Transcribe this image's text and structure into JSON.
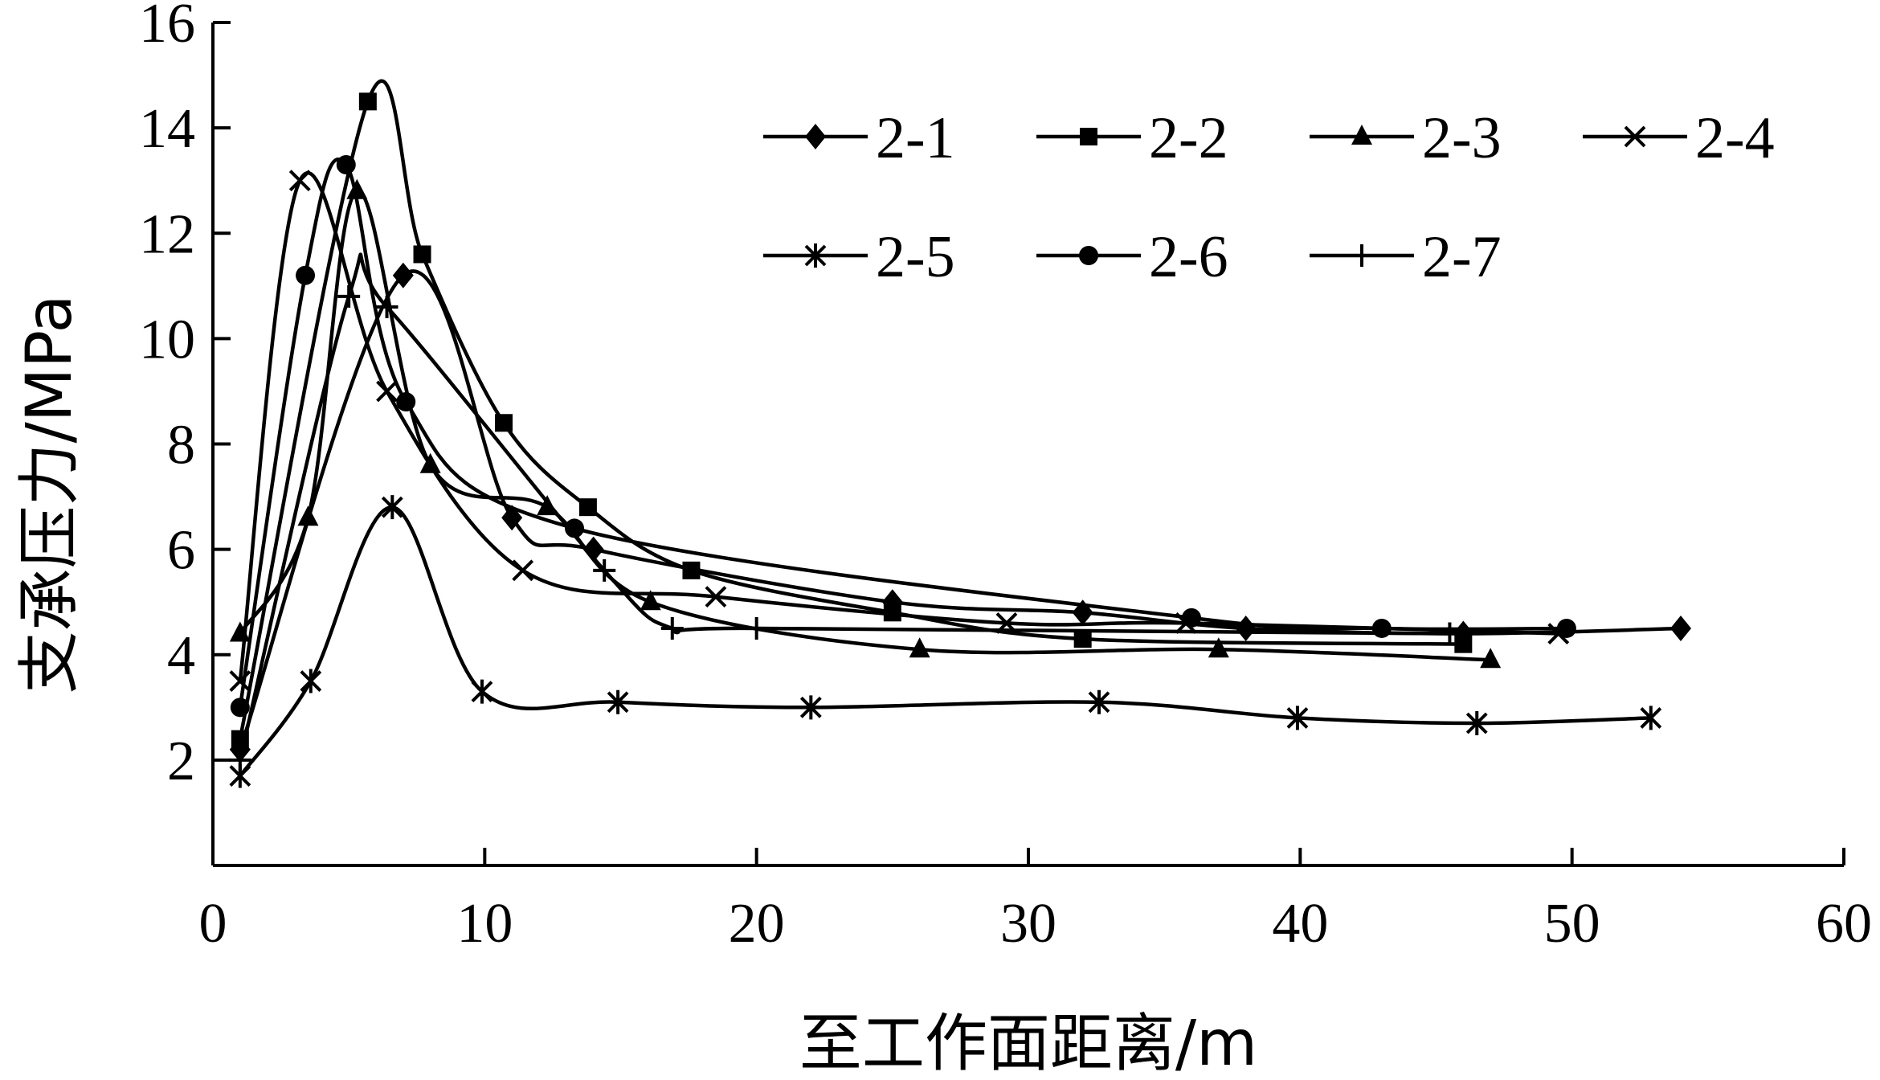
{
  "chart_data": {
    "type": "line",
    "title": "",
    "xlabel": "至工作面距离/m",
    "ylabel": "支承压力/MPa",
    "xlim": [
      0,
      60
    ],
    "ylim": [
      0,
      16
    ],
    "xticks": [
      "0",
      "10",
      "20",
      "30",
      "40",
      "50",
      "60"
    ],
    "yticks": [
      "2",
      "4",
      "6",
      "8",
      "10",
      "12",
      "14",
      "16"
    ],
    "grid": false,
    "legend_position": "top-right",
    "series": [
      {
        "name": "2-1",
        "marker": "diamond",
        "x": [
          1,
          7,
          11,
          14,
          25,
          32,
          38,
          46,
          54
        ],
        "y": [
          2.2,
          11.2,
          6.6,
          6.0,
          5.0,
          4.8,
          4.5,
          4.4,
          4.5
        ]
      },
      {
        "name": "2-2",
        "marker": "square",
        "x": [
          1,
          5.7,
          7.7,
          10.7,
          13.8,
          17.6,
          25,
          32,
          46
        ],
        "y": [
          2.4,
          14.5,
          11.6,
          8.4,
          6.8,
          5.6,
          4.8,
          4.3,
          4.2
        ]
      },
      {
        "name": "2-3",
        "marker": "triangle",
        "x": [
          1,
          3.5,
          5.3,
          8.0,
          12.3,
          16.1,
          26,
          37,
          47
        ],
        "y": [
          4.4,
          6.6,
          12.8,
          7.6,
          6.8,
          5.0,
          4.1,
          4.1,
          3.9
        ]
      },
      {
        "name": "2-4",
        "marker": "x",
        "x": [
          1,
          3.2,
          6.4,
          11.4,
          18.5,
          29.2,
          35.8,
          49.5
        ],
        "y": [
          3.5,
          13.0,
          9.0,
          5.6,
          5.1,
          4.6,
          4.6,
          4.4
        ]
      },
      {
        "name": "2-5",
        "marker": "star",
        "x": [
          1,
          3.6,
          6.6,
          9.9,
          14.9,
          22.0,
          32.6,
          39.9,
          46.5,
          52.9
        ],
        "y": [
          1.7,
          3.5,
          6.8,
          3.3,
          3.1,
          3.0,
          3.1,
          2.8,
          2.7,
          2.8
        ]
      },
      {
        "name": "2-6",
        "marker": "circle",
        "x": [
          1,
          3.4,
          4.9,
          7.1,
          13.3,
          36,
          43,
          49.8
        ],
        "y": [
          3.0,
          11.2,
          13.3,
          8.8,
          6.4,
          4.7,
          4.5,
          4.5
        ]
      },
      {
        "name": "2-7",
        "marker": "plus",
        "x": [
          1,
          5.0,
          6.4,
          14.4,
          16.9,
          20.0,
          45.5
        ],
        "y": [
          2.0,
          10.8,
          10.6,
          5.6,
          4.5,
          4.5,
          4.4
        ]
      }
    ]
  }
}
